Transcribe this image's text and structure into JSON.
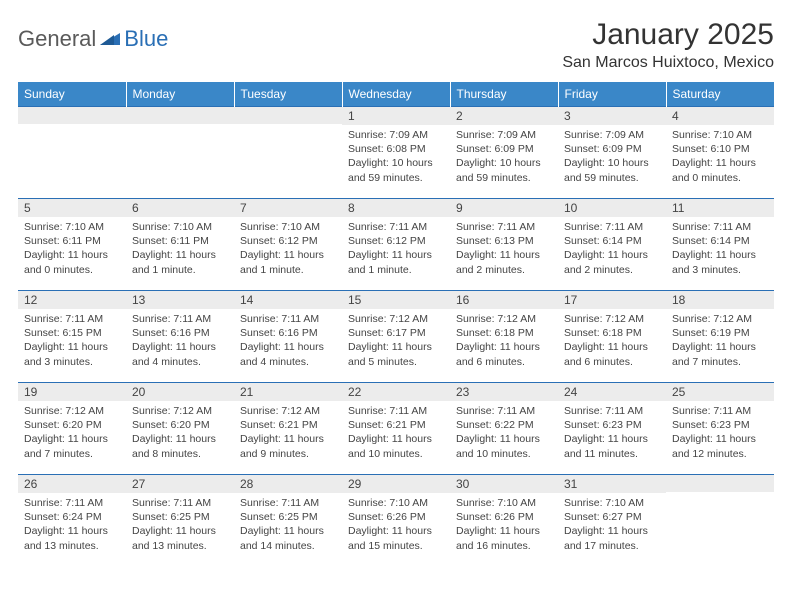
{
  "brand": {
    "word1": "General",
    "word2": "Blue"
  },
  "title": "January 2025",
  "location": "San Marcos Huixtoco, Mexico",
  "colors": {
    "header_bg": "#3a87c8",
    "header_text": "#ffffff",
    "border": "#2a6fb5",
    "daynum_bg": "#ececec",
    "body_text": "#444444",
    "title_text": "#333333",
    "logo_gray": "#5a5a5a",
    "logo_blue": "#2a6fb5"
  },
  "weekdays": [
    "Sunday",
    "Monday",
    "Tuesday",
    "Wednesday",
    "Thursday",
    "Friday",
    "Saturday"
  ],
  "weeks": [
    [
      {
        "n": "",
        "lines": []
      },
      {
        "n": "",
        "lines": []
      },
      {
        "n": "",
        "lines": []
      },
      {
        "n": "1",
        "lines": [
          "Sunrise: 7:09 AM",
          "Sunset: 6:08 PM",
          "Daylight: 10 hours and 59 minutes."
        ]
      },
      {
        "n": "2",
        "lines": [
          "Sunrise: 7:09 AM",
          "Sunset: 6:09 PM",
          "Daylight: 10 hours and 59 minutes."
        ]
      },
      {
        "n": "3",
        "lines": [
          "Sunrise: 7:09 AM",
          "Sunset: 6:09 PM",
          "Daylight: 10 hours and 59 minutes."
        ]
      },
      {
        "n": "4",
        "lines": [
          "Sunrise: 7:10 AM",
          "Sunset: 6:10 PM",
          "Daylight: 11 hours and 0 minutes."
        ]
      }
    ],
    [
      {
        "n": "5",
        "lines": [
          "Sunrise: 7:10 AM",
          "Sunset: 6:11 PM",
          "Daylight: 11 hours and 0 minutes."
        ]
      },
      {
        "n": "6",
        "lines": [
          "Sunrise: 7:10 AM",
          "Sunset: 6:11 PM",
          "Daylight: 11 hours and 1 minute."
        ]
      },
      {
        "n": "7",
        "lines": [
          "Sunrise: 7:10 AM",
          "Sunset: 6:12 PM",
          "Daylight: 11 hours and 1 minute."
        ]
      },
      {
        "n": "8",
        "lines": [
          "Sunrise: 7:11 AM",
          "Sunset: 6:12 PM",
          "Daylight: 11 hours and 1 minute."
        ]
      },
      {
        "n": "9",
        "lines": [
          "Sunrise: 7:11 AM",
          "Sunset: 6:13 PM",
          "Daylight: 11 hours and 2 minutes."
        ]
      },
      {
        "n": "10",
        "lines": [
          "Sunrise: 7:11 AM",
          "Sunset: 6:14 PM",
          "Daylight: 11 hours and 2 minutes."
        ]
      },
      {
        "n": "11",
        "lines": [
          "Sunrise: 7:11 AM",
          "Sunset: 6:14 PM",
          "Daylight: 11 hours and 3 minutes."
        ]
      }
    ],
    [
      {
        "n": "12",
        "lines": [
          "Sunrise: 7:11 AM",
          "Sunset: 6:15 PM",
          "Daylight: 11 hours and 3 minutes."
        ]
      },
      {
        "n": "13",
        "lines": [
          "Sunrise: 7:11 AM",
          "Sunset: 6:16 PM",
          "Daylight: 11 hours and 4 minutes."
        ]
      },
      {
        "n": "14",
        "lines": [
          "Sunrise: 7:11 AM",
          "Sunset: 6:16 PM",
          "Daylight: 11 hours and 4 minutes."
        ]
      },
      {
        "n": "15",
        "lines": [
          "Sunrise: 7:12 AM",
          "Sunset: 6:17 PM",
          "Daylight: 11 hours and 5 minutes."
        ]
      },
      {
        "n": "16",
        "lines": [
          "Sunrise: 7:12 AM",
          "Sunset: 6:18 PM",
          "Daylight: 11 hours and 6 minutes."
        ]
      },
      {
        "n": "17",
        "lines": [
          "Sunrise: 7:12 AM",
          "Sunset: 6:18 PM",
          "Daylight: 11 hours and 6 minutes."
        ]
      },
      {
        "n": "18",
        "lines": [
          "Sunrise: 7:12 AM",
          "Sunset: 6:19 PM",
          "Daylight: 11 hours and 7 minutes."
        ]
      }
    ],
    [
      {
        "n": "19",
        "lines": [
          "Sunrise: 7:12 AM",
          "Sunset: 6:20 PM",
          "Daylight: 11 hours and 7 minutes."
        ]
      },
      {
        "n": "20",
        "lines": [
          "Sunrise: 7:12 AM",
          "Sunset: 6:20 PM",
          "Daylight: 11 hours and 8 minutes."
        ]
      },
      {
        "n": "21",
        "lines": [
          "Sunrise: 7:12 AM",
          "Sunset: 6:21 PM",
          "Daylight: 11 hours and 9 minutes."
        ]
      },
      {
        "n": "22",
        "lines": [
          "Sunrise: 7:11 AM",
          "Sunset: 6:21 PM",
          "Daylight: 11 hours and 10 minutes."
        ]
      },
      {
        "n": "23",
        "lines": [
          "Sunrise: 7:11 AM",
          "Sunset: 6:22 PM",
          "Daylight: 11 hours and 10 minutes."
        ]
      },
      {
        "n": "24",
        "lines": [
          "Sunrise: 7:11 AM",
          "Sunset: 6:23 PM",
          "Daylight: 11 hours and 11 minutes."
        ]
      },
      {
        "n": "25",
        "lines": [
          "Sunrise: 7:11 AM",
          "Sunset: 6:23 PM",
          "Daylight: 11 hours and 12 minutes."
        ]
      }
    ],
    [
      {
        "n": "26",
        "lines": [
          "Sunrise: 7:11 AM",
          "Sunset: 6:24 PM",
          "Daylight: 11 hours and 13 minutes."
        ]
      },
      {
        "n": "27",
        "lines": [
          "Sunrise: 7:11 AM",
          "Sunset: 6:25 PM",
          "Daylight: 11 hours and 13 minutes."
        ]
      },
      {
        "n": "28",
        "lines": [
          "Sunrise: 7:11 AM",
          "Sunset: 6:25 PM",
          "Daylight: 11 hours and 14 minutes."
        ]
      },
      {
        "n": "29",
        "lines": [
          "Sunrise: 7:10 AM",
          "Sunset: 6:26 PM",
          "Daylight: 11 hours and 15 minutes."
        ]
      },
      {
        "n": "30",
        "lines": [
          "Sunrise: 7:10 AM",
          "Sunset: 6:26 PM",
          "Daylight: 11 hours and 16 minutes."
        ]
      },
      {
        "n": "31",
        "lines": [
          "Sunrise: 7:10 AM",
          "Sunset: 6:27 PM",
          "Daylight: 11 hours and 17 minutes."
        ]
      },
      {
        "n": "",
        "lines": []
      }
    ]
  ]
}
